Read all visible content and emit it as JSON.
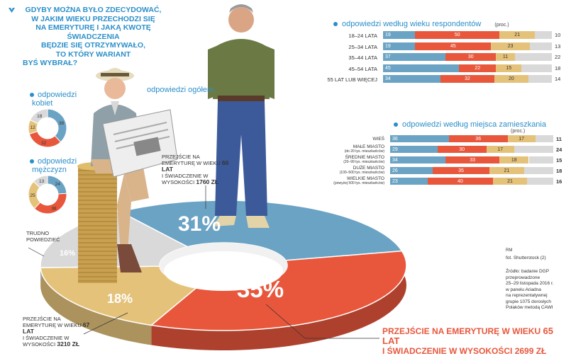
{
  "question": {
    "lines": [
      "GDYBY MOŻNA BYŁO ZDECYDOWAĆ,",
      "W JAKIM WIEKU PRZECHODZI SIĘ",
      "NA EMERYTURĘ I JAKĄ KWOTĘ ŚWIADCZENIA",
      "BĘDZIE SIĘ OTRZYMYWAŁO,",
      "TO KTÓRY WARIANT",
      "BYŚ WYBRAŁ?"
    ]
  },
  "labels": {
    "overall": "odpowiedzi ogółem",
    "women": "odpowiedzi kobiet",
    "men": "odpowiedzi mężczyzn",
    "age_title": "odpowiedzi według wieku respondentów",
    "place_title": "odpowiedzi według miejsca zamieszkania",
    "proc": "(proc.)"
  },
  "colors": {
    "blue": "#6ba3c4",
    "red": "#e8573c",
    "yellow": "#e5c27a",
    "grey": "#d9d9d9",
    "title_blue": "#2b8fc9"
  },
  "chart_data": [
    {
      "type": "pie",
      "name": "overall",
      "values": [
        31,
        35,
        18,
        16
      ],
      "labels": [
        "31%",
        "35%",
        "18%",
        "16%"
      ],
      "callouts": {
        "opt60": {
          "pre": "PRZEJŚCIE NA EMERYTURĘ W WIEKU",
          "age": "60 LAT",
          "mid": "I ŚWIADCZENIE W WYSOKOŚCI",
          "amount": "1760 ZŁ"
        },
        "opt67": {
          "pre": "PRZEJŚCIE NA EMERYTURĘ W WIEKU",
          "age": "67 LAT",
          "mid": "I ŚWIADCZENIE W WYSOKOŚCI",
          "amount": "3210 ZŁ"
        },
        "opt65": {
          "line1": "PRZEJŚCIE NA EMERYTURĘ W WIEKU",
          "age": "65 LAT",
          "line2": "I ŚWIADCZENIE W WYSOKOŚCI",
          "amount": "2699 ZŁ"
        },
        "unsure": "TRUDNO POWIEDZIEĆ"
      }
    },
    {
      "type": "pie",
      "name": "women",
      "values": [
        38,
        32,
        12,
        18
      ],
      "labels": [
        "38",
        "32",
        "12",
        "18"
      ]
    },
    {
      "type": "pie",
      "name": "men",
      "values": [
        24,
        38,
        25,
        13
      ],
      "labels": [
        "24",
        "38",
        "25",
        "13"
      ]
    },
    {
      "type": "bar",
      "name": "age",
      "stacked": true,
      "categories": [
        "18–24 LATA",
        "25–34 LATA",
        "35–44 LATA",
        "45–54 LATA",
        "55 LAT LUB WIĘCEJ"
      ],
      "series": [
        {
          "values": [
            19,
            19,
            37,
            45,
            34
          ]
        },
        {
          "values": [
            50,
            45,
            30,
            22,
            32
          ]
        },
        {
          "values": [
            21,
            23,
            11,
            15,
            20
          ]
        },
        {
          "values": [
            10,
            13,
            22,
            18,
            14
          ]
        }
      ]
    },
    {
      "type": "bar",
      "name": "place",
      "stacked": true,
      "categories": [
        {
          "main": "WIEŚ",
          "sub": ""
        },
        {
          "main": "MAŁE MIASTO",
          "sub": "(do 20 tys. mieszkańców)"
        },
        {
          "main": "ŚREDNIE MIASTO",
          "sub": "(20–99 tys. mieszkańców)"
        },
        {
          "main": "DUŻE MIASTO",
          "sub": "(100–500 tys. mieszkańców)"
        },
        {
          "main": "WIELKIE MIASTO",
          "sub": "(powyżej 500 tys. mieszkańców)"
        }
      ],
      "series": [
        {
          "values": [
            36,
            29,
            34,
            26,
            23
          ]
        },
        {
          "values": [
            36,
            30,
            33,
            35,
            40
          ]
        },
        {
          "values": [
            17,
            17,
            18,
            21,
            21
          ]
        },
        {
          "values": [
            11,
            24,
            15,
            18,
            16
          ]
        }
      ]
    }
  ],
  "credits": {
    "rm": "RM",
    "photo": "fot. Shutterstock (2)",
    "source": [
      "Źródło: badanie DGP",
      "przeprowadzone",
      "25–29 listopada 2016 r.",
      "w panelu Ariadna",
      "na reprezentatywnej",
      "grupie 1075 dorosłych",
      "Polaków metodą CAWI"
    ]
  }
}
